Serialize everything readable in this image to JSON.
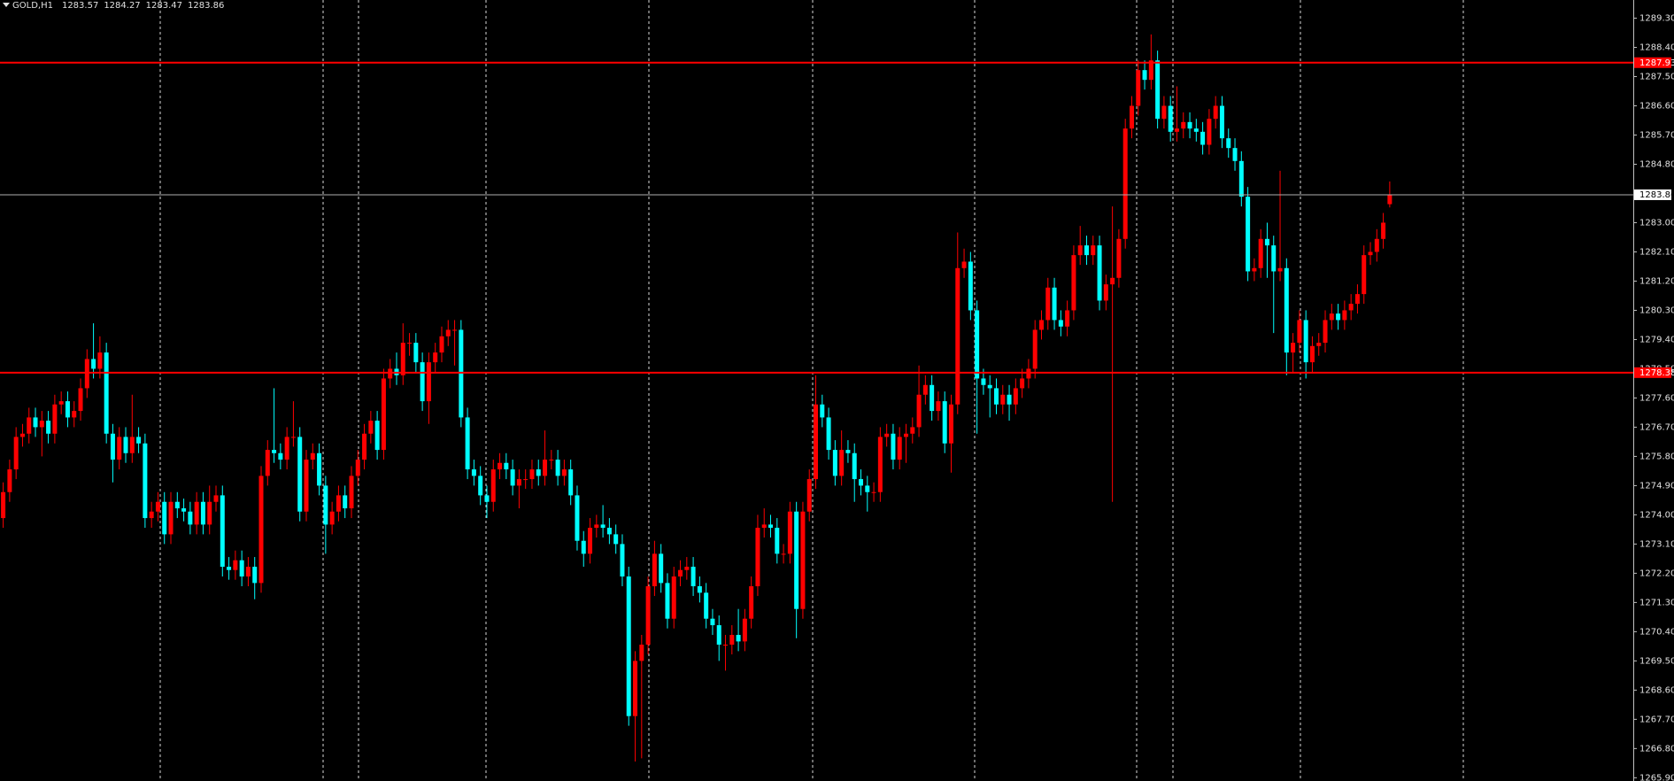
{
  "chart_data": {
    "type": "candlestick",
    "title": "GOLD,H1",
    "up_color": "#ff0000",
    "down_color": "#00ffff",
    "last_price_color": "#b0b0b0",
    "ylim": [
      1265.8,
      1289.86
    ],
    "yticks": [
      {
        "value": 1289.3,
        "label": "1289.30"
      },
      {
        "value": 1288.4,
        "label": "1288.40"
      },
      {
        "value": 1287.5,
        "label": "1287.50"
      },
      {
        "value": 1286.6,
        "label": "1286.60"
      },
      {
        "value": 1285.7,
        "label": "1285.70"
      },
      {
        "value": 1284.8,
        "label": "1284.80"
      },
      {
        "value": 1283.0,
        "label": "1283.00"
      },
      {
        "value": 1282.1,
        "label": "1282.10"
      },
      {
        "value": 1281.2,
        "label": "1281.20"
      },
      {
        "value": 1280.3,
        "label": "1280.30"
      },
      {
        "value": 1279.4,
        "label": "1279.40"
      },
      {
        "value": 1278.5,
        "label": "1278.50"
      },
      {
        "value": 1277.6,
        "label": "1277.60"
      },
      {
        "value": 1276.7,
        "label": "1276.70"
      },
      {
        "value": 1275.8,
        "label": "1275.80"
      },
      {
        "value": 1274.9,
        "label": "1274.90"
      },
      {
        "value": 1274.0,
        "label": "1274.00"
      },
      {
        "value": 1273.1,
        "label": "1273.10"
      },
      {
        "value": 1272.2,
        "label": "1272.20"
      },
      {
        "value": 1271.3,
        "label": "1271.30"
      },
      {
        "value": 1270.4,
        "label": "1270.40"
      },
      {
        "value": 1269.5,
        "label": "1269.50"
      },
      {
        "value": 1268.6,
        "label": "1268.60"
      },
      {
        "value": 1267.7,
        "label": "1267.70"
      },
      {
        "value": 1266.8,
        "label": "1266.80"
      },
      {
        "value": 1265.9,
        "label": "1265.90"
      }
    ],
    "hlines": [
      {
        "value": 1287.93,
        "color": "#ff0000"
      },
      {
        "value": 1278.38,
        "color": "#ff0000"
      }
    ],
    "ohlc": [
      [
        1273.9,
        1275.0,
        1273.6,
        1274.7
      ],
      [
        1274.7,
        1275.7,
        1274.4,
        1275.4
      ],
      [
        1275.4,
        1276.7,
        1275.1,
        1276.4
      ],
      [
        1276.4,
        1276.8,
        1276.1,
        1276.5
      ],
      [
        1276.5,
        1277.3,
        1276.2,
        1277.0
      ],
      [
        1277.0,
        1277.3,
        1276.4,
        1276.7
      ],
      [
        1276.7,
        1277.2,
        1275.8,
        1276.9
      ],
      [
        1276.9,
        1277.2,
        1276.2,
        1276.5
      ],
      [
        1276.5,
        1277.7,
        1276.2,
        1277.4
      ],
      [
        1277.4,
        1277.8,
        1277.1,
        1277.5
      ],
      [
        1277.5,
        1277.8,
        1276.7,
        1277.0
      ],
      [
        1277.0,
        1277.5,
        1276.7,
        1277.2
      ],
      [
        1277.2,
        1278.2,
        1276.9,
        1277.9
      ],
      [
        1277.9,
        1279.1,
        1277.6,
        1278.8
      ],
      [
        1278.8,
        1279.9,
        1278.2,
        1278.5
      ],
      [
        1278.5,
        1279.5,
        1278.2,
        1279.0
      ],
      [
        1279.0,
        1279.3,
        1276.2,
        1276.5
      ],
      [
        1276.5,
        1276.8,
        1275.0,
        1275.7
      ],
      [
        1275.7,
        1276.7,
        1275.4,
        1276.4
      ],
      [
        1276.4,
        1276.7,
        1275.6,
        1275.9
      ],
      [
        1275.9,
        1277.7,
        1275.6,
        1276.4
      ],
      [
        1276.4,
        1276.7,
        1275.9,
        1276.2
      ],
      [
        1276.2,
        1276.5,
        1273.6,
        1273.9
      ],
      [
        1273.9,
        1274.4,
        1273.6,
        1274.1
      ],
      [
        1274.1,
        1274.7,
        1273.8,
        1274.4
      ],
      [
        1274.4,
        1274.7,
        1273.1,
        1273.4
      ],
      [
        1273.4,
        1274.7,
        1273.1,
        1274.4
      ],
      [
        1274.4,
        1274.7,
        1273.9,
        1274.2
      ],
      [
        1274.2,
        1274.5,
        1273.8,
        1274.1
      ],
      [
        1274.1,
        1274.4,
        1273.4,
        1273.7
      ],
      [
        1273.7,
        1274.7,
        1273.4,
        1274.4
      ],
      [
        1274.4,
        1274.7,
        1273.4,
        1273.7
      ],
      [
        1273.7,
        1274.9,
        1273.4,
        1274.4
      ],
      [
        1274.4,
        1274.9,
        1274.1,
        1274.6
      ],
      [
        1274.6,
        1274.9,
        1272.1,
        1272.4
      ],
      [
        1272.4,
        1272.7,
        1272.0,
        1272.3
      ],
      [
        1272.3,
        1272.9,
        1272.0,
        1272.6
      ],
      [
        1272.6,
        1272.9,
        1271.8,
        1272.1
      ],
      [
        1272.1,
        1272.7,
        1271.8,
        1272.4
      ],
      [
        1272.4,
        1272.7,
        1271.4,
        1271.9
      ],
      [
        1271.9,
        1275.5,
        1271.6,
        1275.2
      ],
      [
        1275.2,
        1276.3,
        1274.9,
        1276.0
      ],
      [
        1276.0,
        1277.9,
        1275.6,
        1275.9
      ],
      [
        1275.9,
        1276.2,
        1275.4,
        1275.7
      ],
      [
        1275.7,
        1276.7,
        1275.4,
        1276.4
      ],
      [
        1276.4,
        1277.5,
        1276.1,
        1276.4
      ],
      [
        1276.4,
        1276.7,
        1273.8,
        1274.1
      ],
      [
        1274.1,
        1276.0,
        1273.8,
        1275.7
      ],
      [
        1275.7,
        1276.2,
        1275.4,
        1275.9
      ],
      [
        1275.9,
        1276.2,
        1274.6,
        1274.9
      ],
      [
        1274.9,
        1275.2,
        1272.8,
        1273.7
      ],
      [
        1273.7,
        1274.4,
        1273.4,
        1274.1
      ],
      [
        1274.1,
        1274.9,
        1273.8,
        1274.6
      ],
      [
        1274.6,
        1274.9,
        1273.9,
        1274.2
      ],
      [
        1274.2,
        1275.5,
        1273.9,
        1275.2
      ],
      [
        1275.2,
        1276.0,
        1274.9,
        1275.7
      ],
      [
        1275.7,
        1276.8,
        1275.4,
        1276.5
      ],
      [
        1276.5,
        1277.2,
        1276.2,
        1276.9
      ],
      [
        1276.9,
        1277.2,
        1275.7,
        1276.0
      ],
      [
        1276.0,
        1278.5,
        1275.7,
        1278.2
      ],
      [
        1278.2,
        1278.8,
        1277.9,
        1278.5
      ],
      [
        1278.5,
        1279.0,
        1278.0,
        1278.3
      ],
      [
        1278.3,
        1279.9,
        1278.0,
        1279.3
      ],
      [
        1279.3,
        1279.6,
        1278.9,
        1279.3
      ],
      [
        1279.3,
        1279.6,
        1278.4,
        1278.7
      ],
      [
        1278.7,
        1279.0,
        1277.2,
        1277.5
      ],
      [
        1277.5,
        1279.0,
        1276.8,
        1278.7
      ],
      [
        1278.7,
        1279.3,
        1278.4,
        1279.0
      ],
      [
        1279.0,
        1279.8,
        1278.7,
        1279.5
      ],
      [
        1279.5,
        1280.0,
        1279.2,
        1279.7
      ],
      [
        1279.7,
        1280.0,
        1278.6,
        1279.7
      ],
      [
        1279.7,
        1280.0,
        1276.7,
        1277.0
      ],
      [
        1277.0,
        1277.3,
        1275.1,
        1275.4
      ],
      [
        1275.4,
        1275.7,
        1274.9,
        1275.2
      ],
      [
        1275.2,
        1275.5,
        1274.3,
        1274.6
      ],
      [
        1274.6,
        1274.9,
        1273.9,
        1274.4
      ],
      [
        1274.4,
        1275.7,
        1274.1,
        1275.4
      ],
      [
        1275.4,
        1275.9,
        1275.1,
        1275.6
      ],
      [
        1275.6,
        1275.9,
        1275.1,
        1275.4
      ],
      [
        1275.4,
        1275.7,
        1274.6,
        1274.9
      ],
      [
        1274.9,
        1275.4,
        1274.2,
        1275.1
      ],
      [
        1275.1,
        1275.4,
        1274.8,
        1275.1
      ],
      [
        1275.1,
        1275.7,
        1274.8,
        1275.4
      ],
      [
        1275.4,
        1275.7,
        1274.9,
        1275.2
      ],
      [
        1275.2,
        1276.6,
        1274.9,
        1275.7
      ],
      [
        1275.7,
        1276.0,
        1275.4,
        1275.7
      ],
      [
        1275.7,
        1276.0,
        1274.9,
        1275.2
      ],
      [
        1275.2,
        1275.7,
        1274.9,
        1275.4
      ],
      [
        1275.4,
        1275.7,
        1274.3,
        1274.6
      ],
      [
        1274.6,
        1274.9,
        1272.9,
        1273.2
      ],
      [
        1273.2,
        1273.5,
        1272.4,
        1272.8
      ],
      [
        1272.8,
        1273.9,
        1272.5,
        1273.6
      ],
      [
        1273.6,
        1274.0,
        1273.3,
        1273.7
      ],
      [
        1273.7,
        1274.3,
        1273.3,
        1273.6
      ],
      [
        1273.6,
        1273.9,
        1273.1,
        1273.4
      ],
      [
        1273.4,
        1273.7,
        1272.8,
        1273.1
      ],
      [
        1273.1,
        1273.4,
        1271.8,
        1272.1
      ],
      [
        1272.1,
        1272.4,
        1267.5,
        1267.8
      ],
      [
        1267.8,
        1269.8,
        1266.4,
        1269.5
      ],
      [
        1269.5,
        1270.3,
        1266.5,
        1270.0
      ],
      [
        1270.0,
        1272.1,
        1269.7,
        1271.8
      ],
      [
        1271.8,
        1273.2,
        1271.5,
        1272.8
      ],
      [
        1272.8,
        1273.1,
        1271.6,
        1271.9
      ],
      [
        1271.9,
        1272.2,
        1270.5,
        1270.8
      ],
      [
        1270.8,
        1272.4,
        1270.5,
        1272.1
      ],
      [
        1272.1,
        1272.6,
        1271.8,
        1272.3
      ],
      [
        1272.3,
        1272.7,
        1272.0,
        1272.4
      ],
      [
        1272.4,
        1272.7,
        1271.5,
        1271.8
      ],
      [
        1271.8,
        1272.1,
        1271.3,
        1271.6
      ],
      [
        1271.6,
        1271.9,
        1270.5,
        1270.8
      ],
      [
        1270.8,
        1271.1,
        1270.3,
        1270.6
      ],
      [
        1270.6,
        1270.9,
        1269.5,
        1270.0
      ],
      [
        1270.0,
        1270.3,
        1269.2,
        1270.0
      ],
      [
        1270.0,
        1270.6,
        1269.7,
        1270.3
      ],
      [
        1270.3,
        1271.1,
        1269.8,
        1270.1
      ],
      [
        1270.1,
        1271.1,
        1269.8,
        1270.8
      ],
      [
        1270.8,
        1272.1,
        1270.5,
        1271.8
      ],
      [
        1271.8,
        1274.0,
        1271.5,
        1273.6
      ],
      [
        1273.6,
        1274.2,
        1273.3,
        1273.7
      ],
      [
        1273.7,
        1274.0,
        1273.3,
        1273.6
      ],
      [
        1273.6,
        1273.9,
        1272.5,
        1272.8
      ],
      [
        1272.8,
        1273.1,
        1272.5,
        1272.8
      ],
      [
        1272.8,
        1274.4,
        1272.5,
        1274.1
      ],
      [
        1274.1,
        1274.4,
        1270.2,
        1271.1
      ],
      [
        1271.1,
        1274.4,
        1270.8,
        1274.1
      ],
      [
        1274.1,
        1275.4,
        1273.8,
        1275.1
      ],
      [
        1275.1,
        1278.3,
        1274.8,
        1277.4
      ],
      [
        1277.4,
        1277.7,
        1276.7,
        1277.0
      ],
      [
        1277.0,
        1277.3,
        1275.7,
        1276.0
      ],
      [
        1276.0,
        1276.3,
        1274.9,
        1275.2
      ],
      [
        1275.2,
        1276.6,
        1274.9,
        1276.0
      ],
      [
        1276.0,
        1276.3,
        1275.6,
        1275.9
      ],
      [
        1275.9,
        1276.2,
        1274.4,
        1275.1
      ],
      [
        1275.1,
        1275.4,
        1274.6,
        1274.9
      ],
      [
        1274.9,
        1275.2,
        1274.1,
        1274.7
      ],
      [
        1274.7,
        1275.0,
        1274.4,
        1274.7
      ],
      [
        1274.7,
        1276.7,
        1274.4,
        1276.4
      ],
      [
        1276.4,
        1276.8,
        1276.1,
        1276.5
      ],
      [
        1276.5,
        1276.8,
        1275.4,
        1275.7
      ],
      [
        1275.7,
        1276.7,
        1275.4,
        1276.4
      ],
      [
        1276.4,
        1276.8,
        1275.6,
        1276.5
      ],
      [
        1276.5,
        1277.0,
        1276.2,
        1276.7
      ],
      [
        1276.7,
        1278.6,
        1276.4,
        1277.7
      ],
      [
        1277.7,
        1278.3,
        1277.4,
        1278.0
      ],
      [
        1278.0,
        1278.3,
        1276.9,
        1277.2
      ],
      [
        1277.2,
        1277.8,
        1276.9,
        1277.5
      ],
      [
        1277.5,
        1277.8,
        1275.9,
        1276.2
      ],
      [
        1276.2,
        1277.7,
        1275.3,
        1277.4
      ],
      [
        1277.4,
        1282.7,
        1277.1,
        1281.6
      ],
      [
        1281.6,
        1282.2,
        1281.3,
        1281.8
      ],
      [
        1281.8,
        1282.1,
        1280.0,
        1280.3
      ],
      [
        1280.3,
        1280.6,
        1276.5,
        1278.2
      ],
      [
        1278.2,
        1278.5,
        1277.7,
        1278.0
      ],
      [
        1278.0,
        1278.3,
        1277.0,
        1277.9
      ],
      [
        1277.9,
        1278.2,
        1277.1,
        1277.4
      ],
      [
        1277.4,
        1278.0,
        1277.1,
        1277.7
      ],
      [
        1277.7,
        1278.0,
        1276.9,
        1277.4
      ],
      [
        1277.4,
        1278.2,
        1277.1,
        1277.9
      ],
      [
        1277.9,
        1278.5,
        1277.6,
        1278.2
      ],
      [
        1278.2,
        1278.8,
        1277.9,
        1278.5
      ],
      [
        1278.5,
        1280.0,
        1278.2,
        1279.7
      ],
      [
        1279.7,
        1280.3,
        1279.4,
        1280.0
      ],
      [
        1280.0,
        1281.3,
        1279.7,
        1281.0
      ],
      [
        1281.0,
        1281.3,
        1279.7,
        1280.0
      ],
      [
        1280.0,
        1280.3,
        1279.5,
        1279.8
      ],
      [
        1279.8,
        1280.6,
        1279.5,
        1280.3
      ],
      [
        1280.3,
        1282.3,
        1280.0,
        1282.0
      ],
      [
        1282.0,
        1282.9,
        1281.7,
        1282.3
      ],
      [
        1282.3,
        1282.6,
        1281.7,
        1282.0
      ],
      [
        1282.0,
        1282.6,
        1281.7,
        1282.3
      ],
      [
        1282.3,
        1282.6,
        1280.3,
        1280.6
      ],
      [
        1280.6,
        1281.4,
        1280.3,
        1281.1
      ],
      [
        1281.1,
        1283.5,
        1274.4,
        1281.3
      ],
      [
        1281.3,
        1282.8,
        1281.0,
        1282.5
      ],
      [
        1282.5,
        1286.2,
        1282.2,
        1285.9
      ],
      [
        1285.9,
        1286.9,
        1285.6,
        1286.6
      ],
      [
        1286.6,
        1288.0,
        1286.3,
        1287.7
      ],
      [
        1287.7,
        1288.0,
        1287.1,
        1287.4
      ],
      [
        1287.4,
        1288.8,
        1287.1,
        1288.0
      ],
      [
        1288.0,
        1288.3,
        1285.9,
        1286.2
      ],
      [
        1286.2,
        1286.9,
        1285.9,
        1286.6
      ],
      [
        1286.6,
        1286.9,
        1285.5,
        1285.8
      ],
      [
        1285.8,
        1287.2,
        1285.5,
        1285.9
      ],
      [
        1285.9,
        1286.4,
        1285.6,
        1286.1
      ],
      [
        1286.1,
        1286.4,
        1285.6,
        1285.9
      ],
      [
        1285.9,
        1286.2,
        1285.5,
        1285.8
      ],
      [
        1285.8,
        1286.1,
        1285.1,
        1285.4
      ],
      [
        1285.4,
        1286.5,
        1285.1,
        1286.2
      ],
      [
        1286.2,
        1286.9,
        1285.9,
        1286.6
      ],
      [
        1286.6,
        1286.9,
        1285.3,
        1285.6
      ],
      [
        1285.6,
        1285.9,
        1285.0,
        1285.3
      ],
      [
        1285.3,
        1285.6,
        1284.6,
        1284.9
      ],
      [
        1284.9,
        1285.2,
        1283.5,
        1283.8
      ],
      [
        1283.8,
        1284.1,
        1281.2,
        1281.5
      ],
      [
        1281.5,
        1281.9,
        1281.2,
        1281.6
      ],
      [
        1281.6,
        1282.8,
        1281.3,
        1282.5
      ],
      [
        1282.5,
        1283.0,
        1281.3,
        1282.3
      ],
      [
        1282.3,
        1282.6,
        1279.6,
        1281.5
      ],
      [
        1281.5,
        1284.6,
        1281.2,
        1281.6
      ],
      [
        1281.6,
        1281.9,
        1278.3,
        1279.0
      ],
      [
        1279.0,
        1279.6,
        1278.4,
        1279.3
      ],
      [
        1279.3,
        1280.3,
        1279.0,
        1280.0
      ],
      [
        1280.0,
        1280.3,
        1278.2,
        1278.7
      ],
      [
        1278.7,
        1279.5,
        1278.4,
        1279.2
      ],
      [
        1279.2,
        1279.6,
        1278.9,
        1279.3
      ],
      [
        1279.3,
        1280.3,
        1279.0,
        1280.0
      ],
      [
        1280.0,
        1280.5,
        1279.7,
        1280.2
      ],
      [
        1280.2,
        1280.5,
        1279.7,
        1280.0
      ],
      [
        1280.0,
        1280.6,
        1279.7,
        1280.3
      ],
      [
        1280.3,
        1280.8,
        1280.0,
        1280.5
      ],
      [
        1280.5,
        1281.1,
        1280.2,
        1280.8
      ],
      [
        1280.8,
        1282.3,
        1280.5,
        1282.0
      ],
      [
        1282.0,
        1282.4,
        1281.7,
        1282.1
      ],
      [
        1282.1,
        1282.8,
        1281.8,
        1282.5
      ],
      [
        1282.5,
        1283.3,
        1282.2,
        1283.0
      ],
      [
        1283.57,
        1284.27,
        1283.47,
        1283.86
      ]
    ]
  }
}
